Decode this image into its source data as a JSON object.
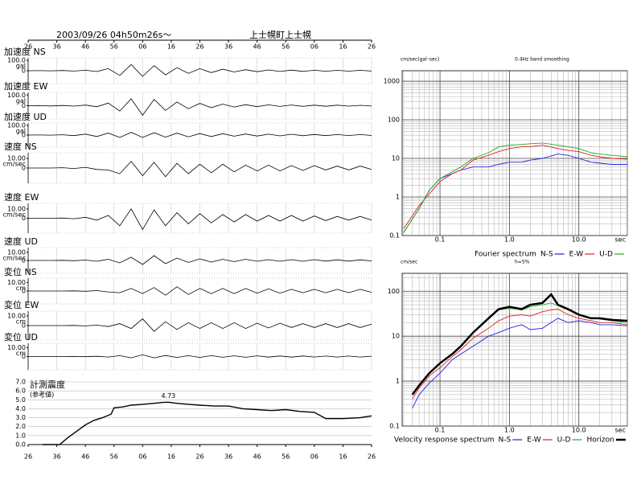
{
  "chart_data": [
    {
      "type": "waveforms",
      "title": "2003/09/26 04h50m26s～",
      "station": "上士幌町上士幌",
      "xlim": [
        0,
        120
      ],
      "xticks": [
        {
          "value": 0,
          "label": "26"
        },
        {
          "value": 10,
          "label": "36"
        },
        {
          "value": 20,
          "label": "46"
        },
        {
          "value": 30,
          "label": "56"
        },
        {
          "value": 40,
          "label": "06"
        },
        {
          "value": 50,
          "label": "16"
        },
        {
          "value": 60,
          "label": "26"
        },
        {
          "value": 70,
          "label": "36"
        },
        {
          "value": 80,
          "label": "46"
        },
        {
          "value": 90,
          "label": "56"
        },
        {
          "value": 100,
          "label": "06"
        },
        {
          "value": 110,
          "label": "16"
        },
        {
          "value": 120,
          "label": "26"
        }
      ],
      "x": [
        0,
        4,
        8,
        12,
        16,
        20,
        24,
        28,
        32,
        36,
        40,
        44,
        48,
        52,
        56,
        60,
        64,
        68,
        72,
        76,
        80,
        84,
        88,
        92,
        96,
        100,
        104,
        108,
        112,
        116,
        120
      ],
      "panels": [
        {
          "name": "加速度 NS",
          "unit": "gal",
          "ylim": [
            -125,
            125
          ],
          "yticks": [
            {
              "value": 100,
              "label": "100.0"
            },
            0
          ],
          "values": [
            0,
            1,
            -1,
            2,
            -3,
            5,
            -8,
            20,
            -45,
            60,
            -55,
            50,
            -40,
            30,
            -25,
            20,
            -18,
            15,
            -12,
            10,
            -9,
            8,
            -7,
            6,
            -6,
            5,
            -5,
            4,
            -4,
            4,
            -3
          ]
        },
        {
          "name": "加速度 EW",
          "unit": "gal",
          "ylim": [
            -125,
            125
          ],
          "yticks": [
            {
              "value": 100,
              "label": "100.0"
            },
            0
          ],
          "values": [
            0,
            1,
            -2,
            2,
            -4,
            6,
            -10,
            25,
            -50,
            65,
            -90,
            60,
            -45,
            35,
            -28,
            22,
            -18,
            15,
            -12,
            10,
            -9,
            8,
            -7,
            7,
            -6,
            5,
            -5,
            5,
            -4,
            4,
            -3
          ]
        },
        {
          "name": "加速度 UD",
          "unit": "gal",
          "ylim": [
            -125,
            125
          ],
          "yticks": [
            {
              "value": 100,
              "label": "100.0"
            },
            0
          ],
          "values": [
            0,
            1,
            -1,
            3,
            -6,
            10,
            -15,
            20,
            -25,
            28,
            -25,
            24,
            -22,
            20,
            -18,
            16,
            -15,
            14,
            -12,
            11,
            -10,
            9,
            -8,
            8,
            -7,
            6,
            -6,
            5,
            -5,
            5,
            -4
          ]
        },
        {
          "name": "速度 NS",
          "unit": "cm/sec",
          "ylim": [
            -16,
            16
          ],
          "yticks": [
            {
              "value": 10,
              "label": "10.00"
            },
            0
          ],
          "values": [
            0,
            0,
            0,
            0.3,
            -0.5,
            0.8,
            -1.5,
            -2,
            -6,
            7,
            -8,
            6,
            -9,
            5,
            -6,
            4,
            -5,
            4,
            -4,
            3,
            -3,
            3,
            -3,
            2.5,
            -2.5,
            2.5,
            -2,
            2,
            -2,
            2,
            -1.5
          ]
        },
        {
          "name": "速度 EW",
          "unit": "cm/sec",
          "ylim": [
            -16,
            16
          ],
          "yticks": [
            {
              "value": 10,
              "label": "10.00"
            },
            0
          ],
          "values": [
            0,
            0,
            0,
            0.3,
            -0.5,
            1,
            -2,
            3,
            -8,
            10,
            -12,
            9,
            -8,
            6,
            -6,
            5,
            -5,
            4,
            -4,
            4,
            -3,
            3,
            -3,
            3,
            -3,
            2.5,
            -2.5,
            2,
            -2,
            2,
            -2
          ]
        },
        {
          "name": "速度 UD",
          "unit": "cm/sec",
          "ylim": [
            -16,
            16
          ],
          "yticks": [
            {
              "value": 10,
              "label": "10.00"
            },
            0
          ],
          "values": [
            0,
            0,
            0,
            0.2,
            -0.3,
            0.5,
            -1,
            1.5,
            -3,
            4,
            -5,
            6,
            -4,
            3,
            -2.5,
            2,
            -2,
            1.5,
            -1.5,
            1.5,
            -1,
            1,
            -1,
            1,
            -1,
            1,
            -0.8,
            0.8,
            -0.8,
            0.8,
            -0.6
          ]
        },
        {
          "name": "変位 NS",
          "unit": "cm",
          "ylim": [
            -15,
            15
          ],
          "yticks": [
            {
              "value": 10,
              "label": "10.00"
            },
            0
          ],
          "values": [
            0,
            0,
            0,
            0,
            0.2,
            -0.3,
            0.5,
            -1,
            -2,
            3,
            -3,
            4,
            -5,
            5,
            -4,
            3,
            -3,
            3,
            -3,
            3,
            -2.5,
            2.5,
            -2.5,
            2,
            -2,
            2,
            -2,
            2,
            -2,
            2,
            -1.5
          ]
        },
        {
          "name": "変位 EW",
          "unit": "cm",
          "ylim": [
            -15,
            15
          ],
          "yticks": [
            {
              "value": 10,
              "label": "10.00"
            },
            0
          ],
          "values": [
            0,
            0,
            0,
            0,
            0.2,
            -0.3,
            0.5,
            -1,
            2,
            -3,
            7,
            -6,
            4,
            -4,
            3,
            -3,
            3,
            -3,
            3,
            -3,
            2.5,
            -2.5,
            2.5,
            -2,
            2,
            -2,
            2,
            -2,
            2,
            -2,
            1.5
          ]
        },
        {
          "name": "変位 UD",
          "unit": "cm",
          "ylim": [
            -15,
            15
          ],
          "yticks": [
            {
              "value": 10,
              "label": "10.00"
            },
            0
          ],
          "values": [
            0,
            0,
            0,
            0,
            0.1,
            -0.2,
            0.3,
            -0.5,
            1,
            -1.5,
            2,
            -1.5,
            1.2,
            -1,
            1,
            -1,
            1,
            -0.8,
            0.8,
            -0.8,
            0.8,
            -0.6,
            0.6,
            -0.6,
            0.6,
            -0.5,
            0.5,
            -0.5,
            0.5,
            -0.5,
            0.4
          ]
        }
      ]
    },
    {
      "type": "line",
      "title": "計測震度",
      "subtitle": "(参考値)",
      "xlim": [
        0,
        120
      ],
      "xticks": [
        {
          "value": 0,
          "label": "26"
        },
        {
          "value": 10,
          "label": "36"
        },
        {
          "value": 20,
          "label": "46"
        },
        {
          "value": 30,
          "label": "56"
        },
        {
          "value": 40,
          "label": "06"
        },
        {
          "value": 50,
          "label": "16"
        },
        {
          "value": 60,
          "label": "26"
        },
        {
          "value": 70,
          "label": "36"
        },
        {
          "value": 80,
          "label": "46"
        },
        {
          "value": 90,
          "label": "56"
        },
        {
          "value": 100,
          "label": "06"
        },
        {
          "value": 110,
          "label": "16"
        },
        {
          "value": 120,
          "label": "26"
        }
      ],
      "ylim": [
        0,
        7
      ],
      "yticks": [
        {
          "value": 0,
          "label": "0.0"
        },
        {
          "value": 1,
          "label": "1.0"
        },
        {
          "value": 2,
          "label": "2.0"
        },
        {
          "value": 3,
          "label": "3.0"
        },
        {
          "value": 4,
          "label": "4.0"
        },
        {
          "value": 5,
          "label": "5.0"
        },
        {
          "value": 6,
          "label": "6.0"
        },
        {
          "value": 7,
          "label": "7.0"
        }
      ],
      "x": [
        5,
        11,
        14,
        17,
        20,
        23,
        26,
        29,
        30,
        33,
        36,
        40,
        44,
        47,
        49,
        52,
        56,
        60,
        65,
        70,
        75,
        80,
        85,
        90,
        95,
        100,
        104,
        110,
        116,
        120
      ],
      "values": [
        0,
        0,
        0.8,
        1.5,
        2.2,
        2.7,
        3.0,
        3.4,
        4.1,
        4.2,
        4.4,
        4.5,
        4.6,
        4.7,
        4.73,
        4.6,
        4.5,
        4.4,
        4.3,
        4.3,
        4.0,
        3.9,
        3.8,
        3.9,
        3.7,
        3.6,
        2.9,
        2.9,
        3.0,
        3.2
      ],
      "annotation": {
        "text": "4.73",
        "x": 49,
        "y": 4.73
      }
    },
    {
      "type": "loglog",
      "ylabel": "cm/sec(gal･sec)",
      "subtitle": "0.4Hz band smoothing",
      "xlabel": "sec",
      "legend_title": "Fourier spectrum",
      "xlim": [
        0.0285,
        50
      ],
      "ylim": [
        0.1,
        1870
      ],
      "xticks": [
        0.1,
        {
          "value": 1,
          "label": "1.0"
        },
        {
          "value": 10,
          "label": "10.0"
        }
      ],
      "yticks": [
        0.1,
        1,
        10,
        100,
        1000
      ],
      "xminor": [
        0.03,
        0.04,
        0.05,
        0.06,
        0.07,
        0.08,
        0.09,
        0.2,
        0.3,
        0.4,
        0.5,
        0.6,
        0.7,
        0.8,
        0.9,
        2,
        3,
        4,
        5,
        6,
        7,
        8,
        9,
        20,
        30,
        40,
        50
      ],
      "yminor": [
        0.2,
        0.3,
        0.4,
        0.5,
        0.6,
        0.7,
        0.8,
        0.9,
        2,
        3,
        4,
        5,
        6,
        7,
        8,
        9,
        20,
        30,
        40,
        50,
        60,
        70,
        80,
        90,
        200,
        300,
        400,
        500,
        600,
        700,
        800,
        900
      ],
      "x": [
        0.03,
        0.05,
        0.07,
        0.1,
        0.15,
        0.2,
        0.3,
        0.5,
        0.7,
        1,
        1.5,
        2,
        3,
        5,
        7,
        10,
        15,
        20,
        30,
        50
      ],
      "series": [
        {
          "name": "N-S",
          "color": "#2222dd",
          "values": [
            0.12,
            0.5,
            1.5,
            3,
            4,
            5,
            6,
            6,
            7,
            8,
            8,
            9,
            10,
            13,
            12,
            10,
            8,
            7.5,
            7,
            7
          ]
        },
        {
          "name": "E-W",
          "color": "#dd2222",
          "values": [
            0.15,
            0.6,
            1.2,
            2.5,
            4,
            5,
            9,
            12,
            15,
            18,
            20,
            20,
            22,
            18,
            16,
            15,
            12,
            11,
            10,
            9.5
          ]
        },
        {
          "name": "U-D",
          "color": "#22aa22",
          "values": [
            0.12,
            0.5,
            1.5,
            3,
            4.5,
            6,
            10,
            14,
            20,
            22,
            23,
            24,
            25,
            22,
            20,
            18,
            14,
            13,
            12,
            11
          ]
        }
      ]
    },
    {
      "type": "loglog",
      "ylabel": "cm/sec",
      "subtitle": "h=5%",
      "xlabel": "sec",
      "legend_title": "Velocity response spectrum",
      "xlim": [
        0.0285,
        50
      ],
      "ylim": [
        0.1,
        250
      ],
      "xticks": [
        0.1,
        {
          "value": 1,
          "label": "1.0"
        },
        {
          "value": 10,
          "label": "10.0"
        }
      ],
      "yticks": [
        0.1,
        1,
        10,
        100
      ],
      "xminor": [
        0.03,
        0.04,
        0.05,
        0.06,
        0.07,
        0.08,
        0.09,
        0.2,
        0.3,
        0.4,
        0.5,
        0.6,
        0.7,
        0.8,
        0.9,
        2,
        3,
        4,
        5,
        6,
        7,
        8,
        9,
        20,
        30,
        40,
        50
      ],
      "yminor": [
        0.2,
        0.3,
        0.4,
        0.5,
        0.6,
        0.7,
        0.8,
        0.9,
        2,
        3,
        4,
        5,
        6,
        7,
        8,
        9,
        20,
        30,
        40,
        50,
        60,
        70,
        80,
        90,
        200
      ],
      "x": [
        0.04,
        0.05,
        0.07,
        0.1,
        0.15,
        0.2,
        0.3,
        0.5,
        0.7,
        1,
        1.5,
        2,
        3,
        4,
        5,
        7,
        10,
        15,
        20,
        30,
        50
      ],
      "series": [
        {
          "name": "N-S",
          "color": "#2222dd",
          "values": [
            0.25,
            0.5,
            0.9,
            1.5,
            3,
            4,
            6,
            10,
            12,
            15,
            18,
            14,
            15,
            20,
            25,
            20,
            22,
            20,
            18,
            18,
            17
          ]
        },
        {
          "name": "E-W",
          "color": "#dd2222",
          "values": [
            0.4,
            0.7,
            1.3,
            2,
            3.5,
            5,
            9,
            15,
            22,
            28,
            30,
            28,
            35,
            38,
            40,
            30,
            25,
            22,
            20,
            20,
            18
          ]
        },
        {
          "name": "U-D",
          "color": "#22aa22",
          "values": [
            0.5,
            0.8,
            1.5,
            2.5,
            4,
            6,
            12,
            24,
            38,
            42,
            38,
            45,
            50,
            55,
            48,
            38,
            30,
            25,
            24,
            22,
            20
          ]
        },
        {
          "name": "Horizon",
          "color": "#000000",
          "width": 2.5,
          "values": [
            0.5,
            0.8,
            1.5,
            2.5,
            4,
            6,
            12,
            25,
            40,
            45,
            40,
            50,
            55,
            85,
            50,
            40,
            30,
            25,
            25,
            23,
            22
          ]
        }
      ]
    }
  ]
}
